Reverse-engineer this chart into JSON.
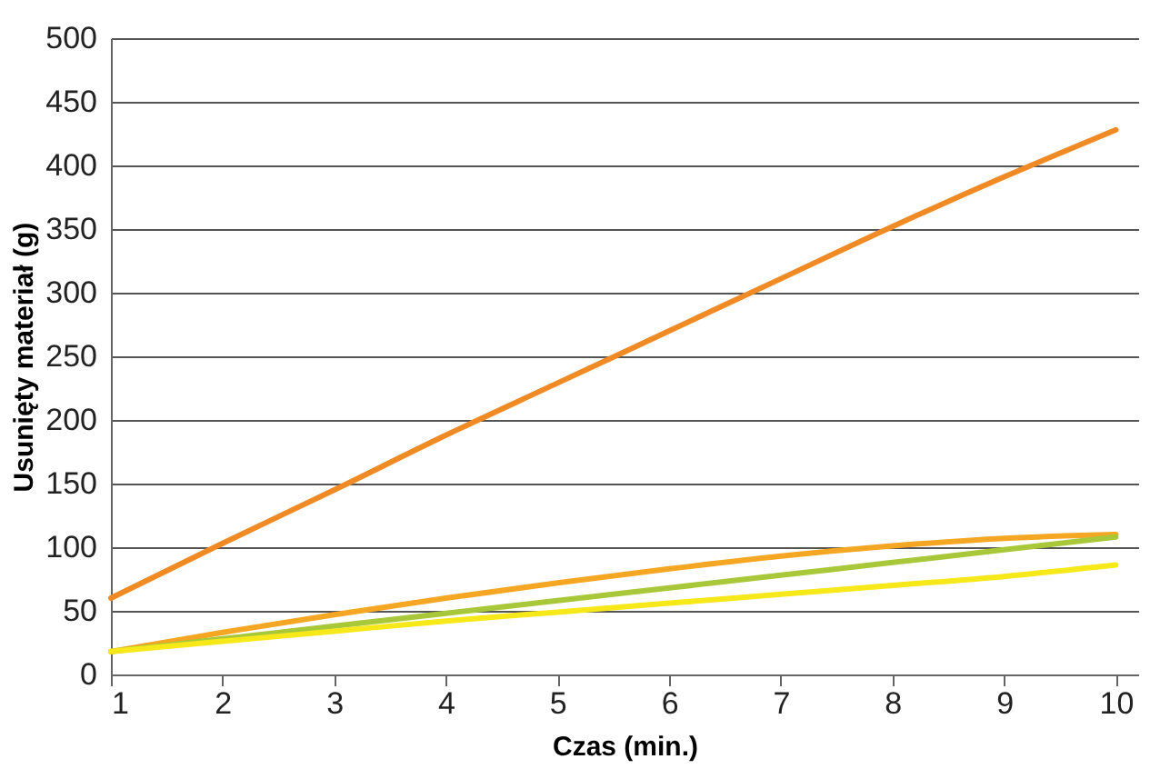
{
  "chart_data": {
    "type": "line",
    "xlabel": "Czas (min.)",
    "ylabel": "Usunięty materiał (g)",
    "x": [
      1,
      2,
      3,
      4,
      5,
      6,
      7,
      8,
      9,
      10
    ],
    "xlim": [
      1,
      10.2
    ],
    "xticks": [
      1,
      2,
      3,
      4,
      5,
      6,
      7,
      8,
      9,
      10
    ],
    "ylim": [
      0,
      500
    ],
    "yticks": [
      0,
      50,
      100,
      150,
      200,
      250,
      300,
      350,
      400,
      450,
      500
    ],
    "grid": "y",
    "legend": false,
    "marker": "none",
    "line_style": "solid",
    "series": [
      {
        "color": "#f08a24",
        "values": [
          60,
          103,
          145,
          188,
          229,
          270,
          311,
          352,
          391,
          428
        ]
      },
      {
        "color": "#f5a623",
        "values": [
          18,
          33,
          47,
          60,
          72,
          83,
          93,
          101,
          107,
          110
        ]
      },
      {
        "color": "#a8c83a",
        "values": [
          18,
          28,
          38,
          48,
          58,
          68,
          78,
          88,
          98,
          108
        ]
      },
      {
        "color": "#f7e81a",
        "values": [
          18,
          26,
          34,
          42,
          49,
          56,
          63,
          70,
          77,
          86
        ]
      }
    ]
  }
}
